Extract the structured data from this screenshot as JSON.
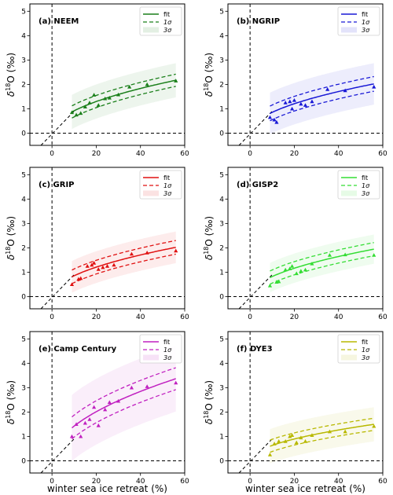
{
  "chart_data": {
    "type": "line",
    "xlim": [
      -10,
      60
    ],
    "ylim": [
      -0.5,
      5.3
    ],
    "xticks": [
      0,
      20,
      40,
      60
    ],
    "yticks": [
      0,
      1,
      2,
      3,
      4,
      5
    ],
    "grid": false,
    "legend_placement": "top-right",
    "legend_labels": [
      "fit",
      "1σ",
      "3σ"
    ],
    "xlabel": "winter sea ice retreat (%)",
    "ylabel_base": "δ",
    "ylabel_sup": "18",
    "ylabel_rest": "O (‰)",
    "reference_line": {
      "x": [
        -5,
        10
      ],
      "y": [
        -0.5,
        0.9
      ]
    },
    "panels": [
      {
        "title": "(a) NEEM",
        "color": "#1a7f1a",
        "fit_scale": 0.29,
        "sigma1": 0.25,
        "sigma3": 0.7,
        "points": [
          [
            9,
            0.85
          ],
          [
            11,
            0.75
          ],
          [
            13,
            0.82
          ],
          [
            15,
            1.08
          ],
          [
            17,
            1.25
          ],
          [
            19,
            1.57
          ],
          [
            21,
            1.15
          ],
          [
            24,
            1.42
          ],
          [
            26,
            1.45
          ],
          [
            30,
            1.58
          ],
          [
            35,
            1.9
          ],
          [
            43,
            2.0
          ],
          [
            56,
            2.15
          ]
        ]
      },
      {
        "title": "(b) NGRIP",
        "color": "#1818d6",
        "fit_scale": 0.27,
        "sigma1": 0.3,
        "sigma3": 0.85,
        "points": [
          [
            9,
            0.65
          ],
          [
            11,
            0.55
          ],
          [
            12,
            0.45
          ],
          [
            16,
            1.25
          ],
          [
            18,
            1.3
          ],
          [
            19,
            1.0
          ],
          [
            20,
            1.35
          ],
          [
            23,
            1.2
          ],
          [
            25,
            1.15
          ],
          [
            28,
            1.3
          ],
          [
            35,
            1.8
          ],
          [
            43,
            1.75
          ],
          [
            56,
            1.9
          ]
        ]
      },
      {
        "title": "(c) GRIP",
        "color": "#e01010",
        "fit_scale": 0.27,
        "sigma1": 0.28,
        "sigma3": 0.65,
        "points": [
          [
            9,
            0.5
          ],
          [
            12,
            0.72
          ],
          [
            13,
            0.75
          ],
          [
            16,
            1.25
          ],
          [
            18,
            1.3
          ],
          [
            19,
            1.38
          ],
          [
            21,
            1.12
          ],
          [
            23,
            1.2
          ],
          [
            25,
            1.25
          ],
          [
            28,
            1.3
          ],
          [
            36,
            1.75
          ],
          [
            43,
            1.8
          ],
          [
            56,
            1.88
          ]
        ]
      },
      {
        "title": "(d) GISP2",
        "color": "#33dd33",
        "fit_scale": 0.26,
        "sigma1": 0.27,
        "sigma3": 0.6,
        "points": [
          [
            9,
            0.45
          ],
          [
            12,
            0.6
          ],
          [
            13,
            0.62
          ],
          [
            16,
            1.1
          ],
          [
            18,
            1.15
          ],
          [
            19,
            1.25
          ],
          [
            21,
            0.95
          ],
          [
            23,
            1.05
          ],
          [
            25,
            1.1
          ],
          [
            28,
            1.35
          ],
          [
            36,
            1.7
          ],
          [
            43,
            1.72
          ],
          [
            56,
            1.7
          ]
        ]
      },
      {
        "title": "(e) Camp Century",
        "color": "#c020c0",
        "fit_scale": 0.45,
        "sigma1": 0.45,
        "sigma3": 1.35,
        "points": [
          [
            9,
            1.0
          ],
          [
            11,
            1.5
          ],
          [
            13,
            1.0
          ],
          [
            15,
            1.55
          ],
          [
            17,
            1.7
          ],
          [
            19,
            2.2
          ],
          [
            21,
            1.45
          ],
          [
            24,
            2.1
          ],
          [
            26,
            2.4
          ],
          [
            30,
            2.45
          ],
          [
            36,
            3.0
          ],
          [
            43,
            3.05
          ],
          [
            56,
            3.2
          ]
        ]
      },
      {
        "title": "(f) DYE3",
        "color": "#b8b800",
        "fit_scale": 0.2,
        "sigma1": 0.25,
        "sigma3": 0.7,
        "points": [
          [
            9,
            0.25
          ],
          [
            11,
            0.7
          ],
          [
            13,
            0.8
          ],
          [
            16,
            0.8
          ],
          [
            18,
            1.0
          ],
          [
            19,
            1.05
          ],
          [
            21,
            0.75
          ],
          [
            23,
            0.95
          ],
          [
            25,
            0.8
          ],
          [
            28,
            1.05
          ],
          [
            36,
            1.2
          ],
          [
            43,
            1.2
          ],
          [
            56,
            1.42
          ]
        ]
      }
    ]
  }
}
